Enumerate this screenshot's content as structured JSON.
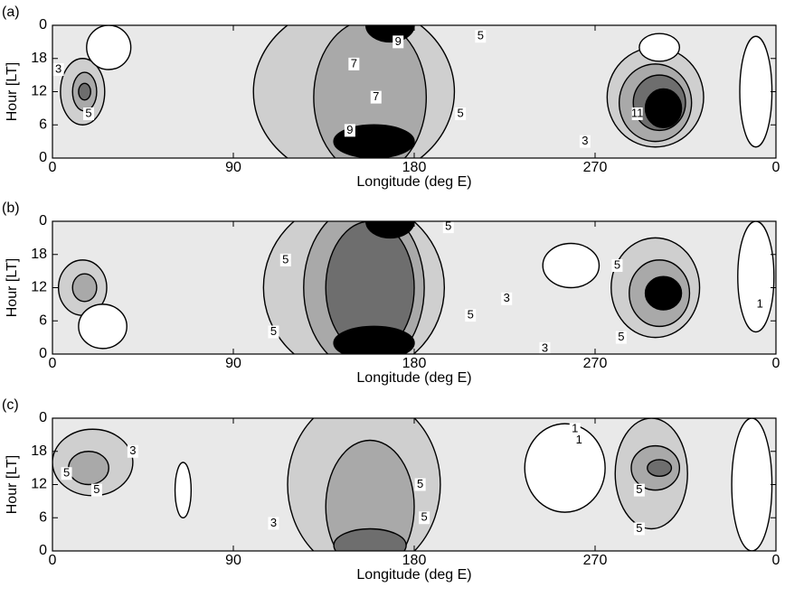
{
  "chart_data": [
    {
      "type": "contour",
      "panel_label": "(a)",
      "x_label": "Longitude (deg E)",
      "y_label": "Hour [LT]",
      "xlim": [
        0,
        360
      ],
      "ylim": [
        0,
        24
      ],
      "xticks": [
        0,
        90,
        180,
        270,
        {
          "value": 360,
          "label": "0"
        }
      ],
      "yticks": [
        0,
        6,
        12,
        18,
        {
          "value": 24,
          "label": "0"
        }
      ],
      "background_color": "#e9e9e9",
      "regions": [
        {
          "level": 5,
          "color": "#cfcfcf",
          "x": 150,
          "y": 12,
          "rx": 50,
          "ry": 16
        },
        {
          "level": 7,
          "color": "#a9a9a9",
          "x": 158,
          "y": 11,
          "rx": 28,
          "ry": 14
        },
        {
          "level": 9,
          "color": "#000000",
          "x": 160,
          "y": 3,
          "rx": 20,
          "ry": 3
        },
        {
          "level": 9,
          "color": "#000000",
          "x": 168,
          "y": 24,
          "rx": 12,
          "ry": 3
        },
        {
          "level": 5,
          "color": "#cfcfcf",
          "x": 15,
          "y": 12,
          "rx": 11,
          "ry": 6
        },
        {
          "level": 7,
          "color": "#a9a9a9",
          "x": 16,
          "y": 12,
          "rx": 6,
          "ry": 3.5
        },
        {
          "level": 9,
          "color": "#6e6e6e",
          "x": 16,
          "y": 12,
          "rx": 3,
          "ry": 1.5
        },
        {
          "level": 5,
          "color": "#cfcfcf",
          "x": 300,
          "y": 11,
          "rx": 24,
          "ry": 9
        },
        {
          "level": 7,
          "color": "#a9a9a9",
          "x": 300,
          "y": 10,
          "rx": 18,
          "ry": 7
        },
        {
          "level": 9,
          "color": "#6e6e6e",
          "x": 302,
          "y": 10,
          "rx": 13,
          "ry": 5
        },
        {
          "level": 11,
          "color": "#000000",
          "x": 304,
          "y": 9,
          "rx": 9,
          "ry": 3.5
        },
        {
          "level": 1,
          "color": "#ffffff",
          "x": 28,
          "y": 20,
          "rx": 11,
          "ry": 4
        },
        {
          "level": 1,
          "color": "#ffffff",
          "x": 350,
          "y": 12,
          "rx": 8,
          "ry": 10
        },
        {
          "level": 1,
          "color": "#ffffff",
          "x": 302,
          "y": 20,
          "rx": 10,
          "ry": 2.5
        }
      ],
      "contour_labels": [
        {
          "value": 9,
          "x": 172,
          "y": 21
        },
        {
          "value": 7,
          "x": 150,
          "y": 17
        },
        {
          "value": 7,
          "x": 161,
          "y": 11
        },
        {
          "value": 9,
          "x": 148,
          "y": 5
        },
        {
          "value": 5,
          "x": 213,
          "y": 22
        },
        {
          "value": 5,
          "x": 203,
          "y": 8
        },
        {
          "value": 3,
          "x": 3,
          "y": 16
        },
        {
          "value": 5,
          "x": 18,
          "y": 8
        },
        {
          "value": 11,
          "x": 291,
          "y": 8
        },
        {
          "value": 3,
          "x": 265,
          "y": 3
        }
      ]
    },
    {
      "type": "contour",
      "panel_label": "(b)",
      "x_label": "Longitude (deg E)",
      "y_label": "Hour [LT]",
      "xlim": [
        0,
        360
      ],
      "ylim": [
        0,
        24
      ],
      "xticks": [
        0,
        90,
        180,
        270,
        {
          "value": 360,
          "label": "0"
        }
      ],
      "yticks": [
        0,
        6,
        12,
        18,
        {
          "value": 24,
          "label": "0"
        }
      ],
      "background_color": "#e9e9e9",
      "regions": [
        {
          "level": 5,
          "color": "#cfcfcf",
          "x": 150,
          "y": 12,
          "rx": 45,
          "ry": 16
        },
        {
          "level": 7,
          "color": "#a9a9a9",
          "x": 155,
          "y": 12,
          "rx": 30,
          "ry": 15
        },
        {
          "level": 9,
          "color": "#6e6e6e",
          "x": 158,
          "y": 12,
          "rx": 22,
          "ry": 12
        },
        {
          "level": 11,
          "color": "#000000",
          "x": 160,
          "y": 2,
          "rx": 20,
          "ry": 3
        },
        {
          "level": 11,
          "color": "#000000",
          "x": 168,
          "y": 24,
          "rx": 12,
          "ry": 3
        },
        {
          "level": 5,
          "color": "#cfcfcf",
          "x": 15,
          "y": 12,
          "rx": 12,
          "ry": 5
        },
        {
          "level": 7,
          "color": "#a9a9a9",
          "x": 16,
          "y": 12,
          "rx": 6,
          "ry": 2.5
        },
        {
          "level": 5,
          "color": "#cfcfcf",
          "x": 300,
          "y": 12,
          "rx": 22,
          "ry": 9
        },
        {
          "level": 7,
          "color": "#a9a9a9",
          "x": 302,
          "y": 11,
          "rx": 15,
          "ry": 6
        },
        {
          "level": 11,
          "color": "#000000",
          "x": 304,
          "y": 11,
          "rx": 9,
          "ry": 3
        },
        {
          "level": 1,
          "color": "#ffffff",
          "x": 25,
          "y": 5,
          "rx": 12,
          "ry": 4
        },
        {
          "level": 1,
          "color": "#ffffff",
          "x": 350,
          "y": 14,
          "rx": 9,
          "ry": 10
        },
        {
          "level": 1,
          "color": "#ffffff",
          "x": 258,
          "y": 16,
          "rx": 14,
          "ry": 4
        }
      ],
      "contour_labels": [
        {
          "value": 5,
          "x": 197,
          "y": 23
        },
        {
          "value": 5,
          "x": 116,
          "y": 17
        },
        {
          "value": 5,
          "x": 110,
          "y": 4
        },
        {
          "value": 5,
          "x": 208,
          "y": 7
        },
        {
          "value": 3,
          "x": 226,
          "y": 10
        },
        {
          "value": 3,
          "x": 245,
          "y": 1
        },
        {
          "value": 5,
          "x": 281,
          "y": 16
        },
        {
          "value": 5,
          "x": 283,
          "y": 3
        },
        {
          "value": 1,
          "x": 352,
          "y": 9
        }
      ]
    },
    {
      "type": "contour",
      "panel_label": "(c)",
      "x_label": "Longitude (deg E)",
      "y_label": "Hour [LT]",
      "xlim": [
        0,
        360
      ],
      "ylim": [
        0,
        24
      ],
      "xticks": [
        0,
        90,
        180,
        270,
        {
          "value": 360,
          "label": "0"
        }
      ],
      "yticks": [
        0,
        6,
        12,
        18,
        {
          "value": 24,
          "label": "0"
        }
      ],
      "background_color": "#e9e9e9",
      "regions": [
        {
          "level": 5,
          "color": "#cfcfcf",
          "x": 155,
          "y": 12,
          "rx": 38,
          "ry": 16
        },
        {
          "level": 7,
          "color": "#a9a9a9",
          "x": 158,
          "y": 8,
          "rx": 22,
          "ry": 12
        },
        {
          "level": 9,
          "color": "#6e6e6e",
          "x": 158,
          "y": 1,
          "rx": 18,
          "ry": 3
        },
        {
          "level": 5,
          "color": "#cfcfcf",
          "x": 20,
          "y": 16,
          "rx": 20,
          "ry": 6
        },
        {
          "level": 7,
          "color": "#a9a9a9",
          "x": 18,
          "y": 15,
          "rx": 10,
          "ry": 3
        },
        {
          "level": 5,
          "color": "#cfcfcf",
          "x": 298,
          "y": 14,
          "rx": 18,
          "ry": 10
        },
        {
          "level": 7,
          "color": "#a9a9a9",
          "x": 300,
          "y": 15,
          "rx": 12,
          "ry": 4
        },
        {
          "level": 9,
          "color": "#6e6e6e",
          "x": 302,
          "y": 15,
          "rx": 6,
          "ry": 1.5
        },
        {
          "level": 1,
          "color": "#ffffff",
          "x": 255,
          "y": 15,
          "rx": 20,
          "ry": 8
        },
        {
          "level": 1,
          "color": "#ffffff",
          "x": 348,
          "y": 12,
          "rx": 10,
          "ry": 12
        },
        {
          "level": 1,
          "color": "#ffffff",
          "x": 65,
          "y": 11,
          "rx": 4,
          "ry": 5
        }
      ],
      "contour_labels": [
        {
          "value": 3,
          "x": 40,
          "y": 18
        },
        {
          "value": 5,
          "x": 7,
          "y": 14
        },
        {
          "value": 5,
          "x": 22,
          "y": 11
        },
        {
          "value": 3,
          "x": 110,
          "y": 5
        },
        {
          "value": 5,
          "x": 183,
          "y": 12
        },
        {
          "value": 5,
          "x": 185,
          "y": 6
        },
        {
          "value": 1,
          "x": 260,
          "y": 22
        },
        {
          "value": 1,
          "x": 262,
          "y": 20
        },
        {
          "value": 5,
          "x": 292,
          "y": 11
        },
        {
          "value": 5,
          "x": 292,
          "y": 4
        }
      ]
    }
  ]
}
